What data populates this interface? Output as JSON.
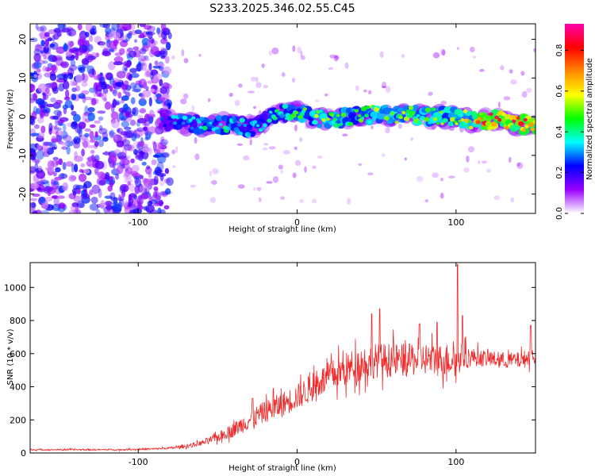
{
  "chart_data": [
    {
      "type": "heatmap",
      "title": "S233.2025.346.02.55.C45",
      "xlabel": "Height of straight line (km)",
      "ylabel": "Frequency (Hz)",
      "xlim": [
        -168,
        150
      ],
      "ylim": [
        -25,
        24
      ],
      "xticks": [
        -100,
        0,
        100
      ],
      "xtick_labels": [
        "-100",
        "0",
        "100"
      ],
      "yticks": [
        -20,
        -10,
        0,
        10,
        20
      ],
      "ytick_labels": [
        "-20",
        "-10",
        "0",
        "10",
        "20"
      ],
      "colorbar": {
        "label": "Normalized spectral amplitude",
        "range": [
          0,
          0.93
        ],
        "ticks": [
          0,
          0.2,
          0.4,
          0.6,
          0.8
        ],
        "tick_labels": [
          "0.0",
          "0.2",
          "0.4",
          "0.6",
          "0.8"
        ],
        "colors": [
          "#ffffff",
          "#9900ff",
          "#0000ff",
          "#00ffff",
          "#00ff00",
          "#ffff00",
          "#ff8800",
          "#ff0000",
          "#ff00aa"
        ]
      },
      "ridge": {
        "description": "narrow band of high spectral amplitude near 0 Hz",
        "x": [
          -85,
          -70,
          -55,
          -40,
          -30,
          -20,
          -10,
          0,
          10,
          20,
          30,
          40,
          50,
          60,
          70,
          80,
          90,
          100,
          110,
          120,
          130,
          140,
          150
        ],
        "freq": [
          -1,
          -2,
          -2,
          -2,
          -3,
          -1,
          1,
          1,
          0,
          -1,
          0,
          0,
          1,
          0,
          1,
          0,
          0,
          0,
          -1,
          -1,
          -1,
          -2,
          -2
        ],
        "amplitude": [
          0.25,
          0.35,
          0.4,
          0.4,
          0.3,
          0.35,
          0.4,
          0.45,
          0.5,
          0.5,
          0.45,
          0.45,
          0.5,
          0.5,
          0.5,
          0.45,
          0.5,
          0.55,
          0.6,
          0.75,
          0.8,
          0.85,
          0.7
        ]
      },
      "noise_region": {
        "x_range": [
          -168,
          -80
        ],
        "freq_range": [
          -25,
          24
        ],
        "amplitude": 0.15
      }
    },
    {
      "type": "line",
      "xlabel": "Height of straight line (km)",
      "ylabel": "SNR (10 * v/v)",
      "xlim": [
        -168,
        150
      ],
      "ylim": [
        0,
        1150
      ],
      "xticks": [
        -100,
        0,
        100
      ],
      "xtick_labels": [
        "-100",
        "0",
        "100"
      ],
      "yticks": [
        0,
        200,
        400,
        600,
        800,
        1000
      ],
      "ytick_labels": [
        "0",
        "200",
        "400",
        "600",
        "800",
        "1000"
      ],
      "series": [
        {
          "name": "SNR",
          "color": "#ee2a2a",
          "x": [
            -168,
            -140,
            -110,
            -90,
            -80,
            -70,
            -60,
            -50,
            -40,
            -30,
            -20,
            -10,
            0,
            10,
            20,
            30,
            40,
            50,
            60,
            70,
            80,
            90,
            100,
            110,
            120,
            130,
            140,
            150
          ],
          "envelope": [
            20,
            20,
            20,
            25,
            30,
            40,
            60,
            95,
            140,
            200,
            250,
            290,
            340,
            400,
            460,
            500,
            540,
            560,
            560,
            560,
            570,
            560,
            570,
            580,
            570,
            560,
            560,
            590
          ],
          "spread": [
            8,
            8,
            8,
            10,
            12,
            20,
            30,
            50,
            80,
            110,
            120,
            140,
            140,
            160,
            170,
            190,
            200,
            190,
            190,
            180,
            180,
            180,
            190,
            100,
            90,
            90,
            90,
            110
          ],
          "peaks": [
            [
              -28,
              330
            ],
            [
              -15,
              390
            ],
            [
              15,
              440
            ],
            [
              35,
              500
            ],
            [
              47,
              840
            ],
            [
              52,
              870
            ],
            [
              77,
              780
            ],
            [
              88,
              790
            ],
            [
              101,
              1140
            ],
            [
              104,
              830
            ],
            [
              147,
              770
            ]
          ]
        }
      ]
    }
  ]
}
